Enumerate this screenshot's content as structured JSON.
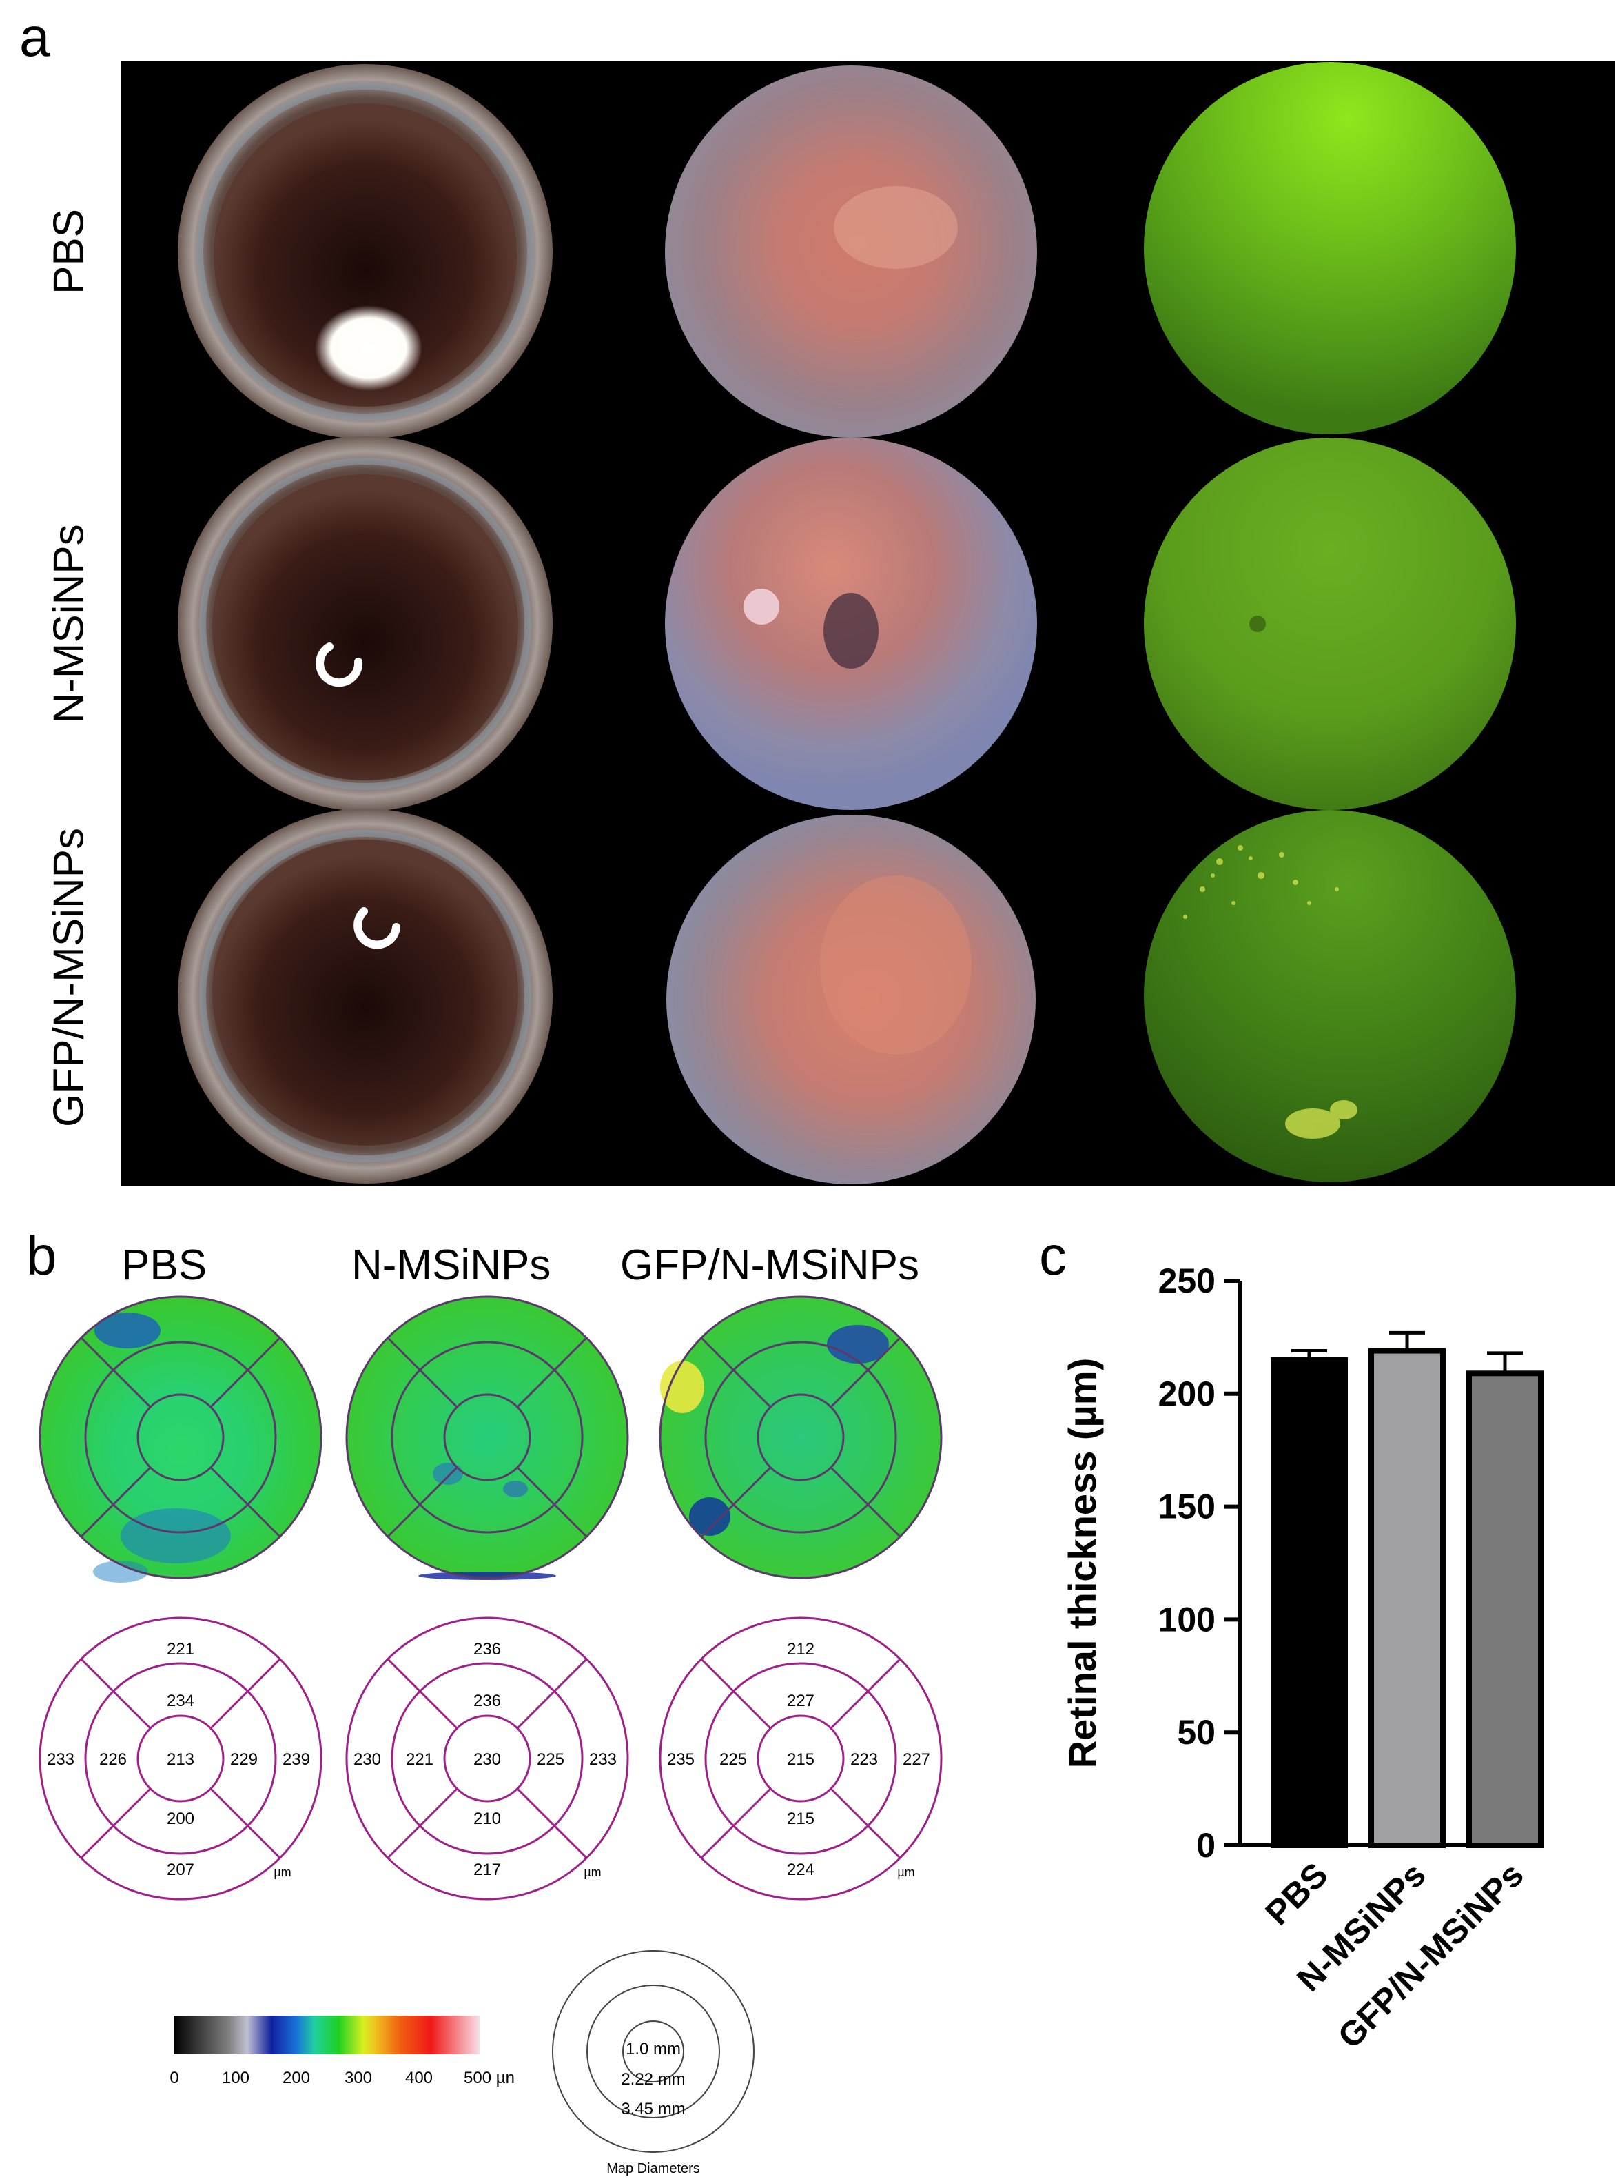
{
  "panel_a": {
    "letter": "a",
    "rows": [
      "PBS",
      "N-MSiNPs",
      "GFP/N-MSiNPs"
    ]
  },
  "panel_b": {
    "letter": "b",
    "columns": [
      "PBS",
      "N-MSiNPs",
      "GFP/N-MSiNPs"
    ],
    "maps": [
      {
        "outer_top": "221",
        "inner_top": "234",
        "outer_left": "233",
        "inner_left": "226",
        "center": "213",
        "inner_right": "229",
        "outer_right": "239",
        "inner_bottom": "200",
        "outer_bottom": "207",
        "unit": "µm"
      },
      {
        "outer_top": "236",
        "inner_top": "236",
        "outer_left": "230",
        "inner_left": "221",
        "center": "230",
        "inner_right": "225",
        "outer_right": "233",
        "inner_bottom": "210",
        "outer_bottom": "217",
        "unit": "µm"
      },
      {
        "outer_top": "212",
        "inner_top": "227",
        "outer_left": "235",
        "inner_left": "225",
        "center": "215",
        "inner_right": "223",
        "outer_right": "227",
        "inner_bottom": "215",
        "outer_bottom": "224",
        "unit": "µm"
      }
    ],
    "colorbar": {
      "ticks": [
        "0",
        "100",
        "200",
        "300",
        "400",
        "500 µn"
      ]
    },
    "map_diameters": {
      "rings": [
        "1.0 mm",
        "2.22 mm",
        "3.45 mm"
      ],
      "caption": "Map Diameters"
    }
  },
  "chart_data": {
    "type": "bar",
    "letter": "c",
    "categories": [
      "PBS",
      "N-MSiNPs",
      "GFP/N-MSiNPs"
    ],
    "values": [
      215,
      219,
      209
    ],
    "errors": [
      4,
      8,
      9
    ],
    "colors": [
      "#000000",
      "#a0a0a4",
      "#7a7a7a"
    ],
    "ylabel": "Retinal thickness (µm)",
    "ylim": [
      0,
      250
    ],
    "yticks": [
      "0",
      "50",
      "100",
      "150",
      "200",
      "250"
    ],
    "tick_values": [
      0,
      50,
      100,
      150,
      200,
      250
    ]
  }
}
